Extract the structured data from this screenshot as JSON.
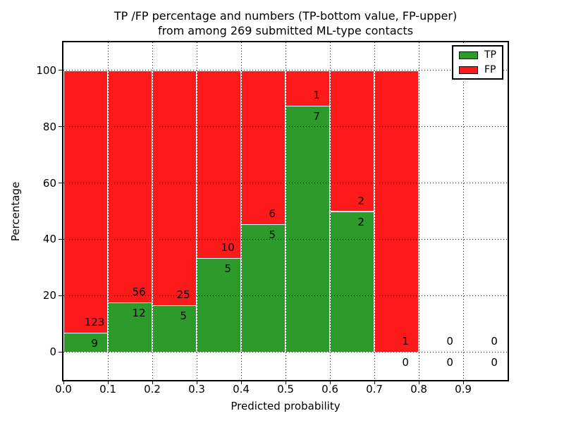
{
  "figure": {
    "title_line1": "TP /FP percentage and numbers (TP-bottom value, FP-upper)",
    "title_line2": "from among 269 submitted ML-type contacts",
    "xlabel": "Predicted probability",
    "ylabel": "Percentage",
    "total_contacts": 269
  },
  "legend": {
    "position": "upper-right",
    "items": [
      {
        "label": "TP",
        "color": "#2c9b2c"
      },
      {
        "label": "FP",
        "color": "#fc1a1a"
      }
    ]
  },
  "chart_data": {
    "type": "bar",
    "stacked": true,
    "normalized_to_percent": true,
    "title": "TP /FP percentage and numbers (TP-bottom value, FP-upper) from among 269 submitted ML-type contacts",
    "xlabel": "Predicted probability",
    "ylabel": "Percentage",
    "bin_width": 0.1,
    "categories": [
      0.0,
      0.1,
      0.2,
      0.3,
      0.4,
      0.5,
      0.6,
      0.7,
      0.8,
      0.9
    ],
    "series": [
      {
        "name": "TP",
        "color": "#2c9b2c",
        "values": [
          9,
          12,
          5,
          5,
          5,
          7,
          2,
          0,
          0,
          0
        ]
      },
      {
        "name": "FP",
        "color": "#fc1a1a",
        "values": [
          123,
          56,
          25,
          10,
          6,
          1,
          2,
          1,
          0,
          0
        ]
      }
    ],
    "tp_percent_per_bin": [
      6.8,
      17.6,
      16.7,
      33.3,
      45.5,
      87.5,
      50.0,
      0.0,
      null,
      null
    ],
    "x_tick_labels": [
      "0.0",
      "0.1",
      "0.2",
      "0.3",
      "0.4",
      "0.5",
      "0.6",
      "0.7",
      "0.8",
      "0.9"
    ],
    "y_ticks": [
      0,
      20,
      40,
      60,
      80,
      100
    ],
    "xlim": [
      0.0,
      1.0
    ],
    "ylim": [
      -10,
      110
    ],
    "grid": true,
    "grid_style": "dotted",
    "legend_position": "upper right"
  }
}
